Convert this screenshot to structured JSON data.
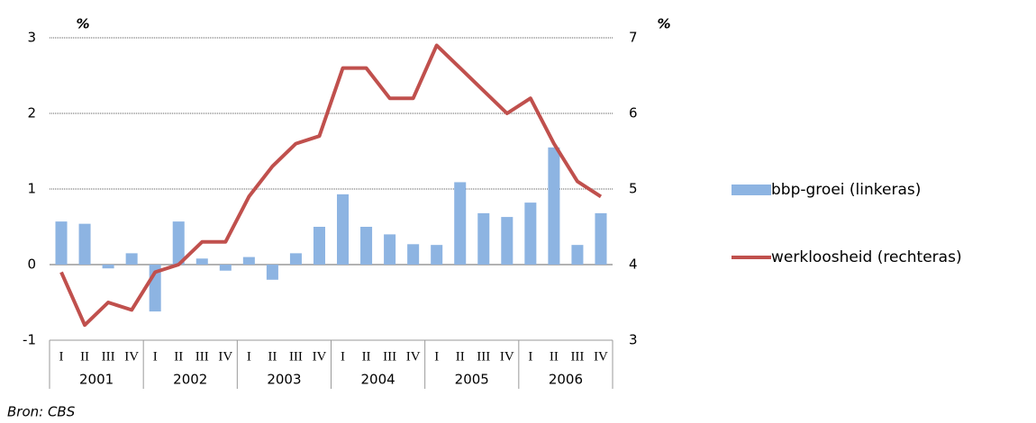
{
  "chart_data": {
    "type": "bar-line",
    "y_unit_label": "%",
    "y2_unit_label": "%",
    "source": "Bron: CBS",
    "categories": [
      "I",
      "II",
      "III",
      "IV",
      "I",
      "II",
      "III",
      "IV",
      "I",
      "II",
      "III",
      "IV",
      "I",
      "II",
      "III",
      "IV",
      "I",
      "II",
      "III",
      "IV",
      "I",
      "II",
      "III",
      "IV"
    ],
    "years": [
      "2001",
      "2002",
      "2003",
      "2004",
      "2005",
      "2006"
    ],
    "series": [
      {
        "name": "bbp-groei (linkeras)",
        "type": "bar",
        "color": "#8db4e2",
        "axis": "y",
        "values": [
          0.57,
          0.54,
          -0.05,
          0.15,
          -0.62,
          0.57,
          0.08,
          -0.08,
          0.1,
          -0.2,
          0.15,
          0.5,
          0.93,
          0.5,
          0.4,
          0.27,
          0.26,
          1.09,
          0.68,
          0.63,
          0.82,
          1.55,
          0.26,
          0.68
        ]
      },
      {
        "name": "werkloosheid (rechteras)",
        "type": "line",
        "color": "#c0504d",
        "axis": "y2",
        "values": [
          3.9,
          3.2,
          3.5,
          3.4,
          3.9,
          4.0,
          4.3,
          4.3,
          4.9,
          5.3,
          5.6,
          5.7,
          6.6,
          6.6,
          6.2,
          6.2,
          6.9,
          6.6,
          6.3,
          6.0,
          6.2,
          5.6,
          5.1,
          4.9
        ]
      }
    ],
    "ylim": [
      -1,
      3
    ],
    "yticks": [
      -1,
      0,
      1,
      2,
      3
    ],
    "y2lim": [
      3,
      7
    ],
    "y2ticks": [
      3,
      4,
      5,
      6,
      7
    ],
    "grid": true,
    "legend": "right"
  }
}
